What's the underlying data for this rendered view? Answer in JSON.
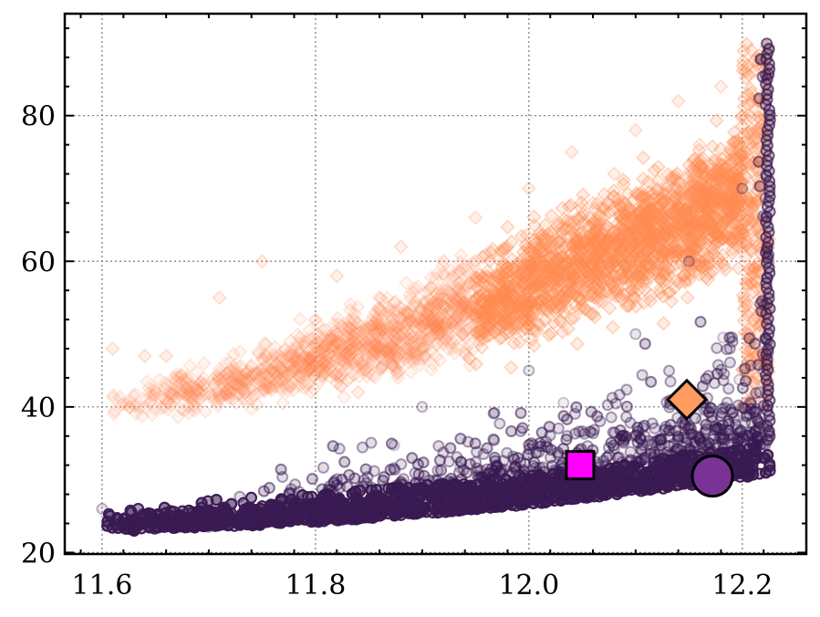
{
  "chart_data": {
    "type": "scatter",
    "title": "",
    "xlabel": "",
    "ylabel": "",
    "xlim": [
      11.565,
      12.26
    ],
    "ylim": [
      19.8,
      94
    ],
    "x_ticks": [
      11.6,
      11.8,
      12.0,
      12.2
    ],
    "x_tick_labels": [
      "11.6",
      "11.8",
      "12.0",
      "12.2"
    ],
    "y_ticks": [
      20,
      40,
      60,
      80
    ],
    "y_tick_labels": [
      "20",
      "40",
      "60",
      "80"
    ],
    "grid": true,
    "series": [
      {
        "marker": "diamond",
        "color": "#ff8a50",
        "opacity": 0.12,
        "description_points": [
          [
            11.61,
            48
          ],
          [
            11.64,
            47
          ],
          [
            11.66,
            47
          ],
          [
            11.71,
            55
          ],
          [
            11.72,
            45
          ],
          [
            11.72,
            42
          ],
          [
            11.75,
            60
          ],
          [
            11.78,
            45
          ],
          [
            11.8,
            52
          ],
          [
            11.82,
            58
          ],
          [
            11.84,
            42
          ],
          [
            11.86,
            55
          ],
          [
            11.88,
            62
          ],
          [
            11.9,
            48
          ],
          [
            11.92,
            60
          ],
          [
            11.95,
            66
          ],
          [
            11.97,
            58
          ],
          [
            12.0,
            70
          ],
          [
            12.02,
            62
          ],
          [
            12.04,
            75
          ],
          [
            12.06,
            68
          ],
          [
            12.08,
            72
          ],
          [
            12.1,
            78
          ],
          [
            12.12,
            70
          ],
          [
            12.14,
            82
          ],
          [
            12.16,
            76
          ],
          [
            12.18,
            84
          ],
          [
            12.2,
            80
          ],
          [
            12.22,
            88
          ],
          [
            12.225,
            70
          ]
        ]
      },
      {
        "marker": "circle",
        "color": "#3a1a52",
        "opacity": 0.15,
        "description_points": [
          [
            11.6,
            26
          ],
          [
            11.62,
            24
          ],
          [
            11.63,
            23
          ],
          [
            11.67,
            24
          ],
          [
            11.7,
            23.5
          ],
          [
            11.75,
            24
          ],
          [
            11.8,
            25
          ],
          [
            11.85,
            26
          ],
          [
            11.9,
            27
          ],
          [
            11.95,
            28
          ],
          [
            12.0,
            29
          ],
          [
            12.05,
            30
          ],
          [
            12.1,
            32
          ],
          [
            12.15,
            34
          ],
          [
            12.2,
            36
          ],
          [
            12.22,
            45
          ],
          [
            12.225,
            60
          ],
          [
            12.225,
            80
          ],
          [
            12.225,
            89
          ],
          [
            11.9,
            40
          ],
          [
            12.0,
            45
          ],
          [
            12.1,
            50
          ],
          [
            12.15,
            60
          ],
          [
            12.2,
            70
          ]
        ]
      }
    ],
    "highlight_markers": [
      {
        "marker": "diamond",
        "color": "#ff9a60",
        "x": 12.148,
        "y": 41
      },
      {
        "marker": "square",
        "color": "#ff00ff",
        "x": 12.048,
        "y": 32
      },
      {
        "marker": "circle",
        "color": "#7b3296",
        "x": 12.172,
        "y": 30.5
      }
    ]
  }
}
